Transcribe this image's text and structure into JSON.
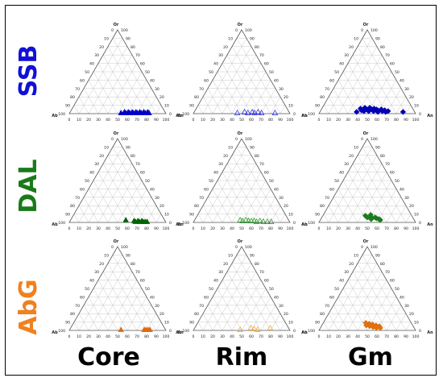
{
  "row_labels": [
    {
      "text": "SSB",
      "color": "#1010d8"
    },
    {
      "text": "DAL",
      "color": "#1a7a1a"
    },
    {
      "text": "AbG",
      "color": "#f08020"
    }
  ],
  "col_labels": [
    "Core",
    "Rim",
    "Gm"
  ],
  "apex_labels": {
    "top": "Or",
    "left": "Ab",
    "right": "An"
  },
  "ticks": [
    "0",
    "10",
    "20",
    "30",
    "40",
    "50",
    "60",
    "70",
    "80",
    "90",
    "100"
  ],
  "chart_data": [
    {
      "type": "scatter",
      "row": "SSB",
      "column": "Core",
      "marker": "triangle",
      "filled": true,
      "color": "#0000c8",
      "points": [
        {
          "An": 53,
          "Or": 1
        },
        {
          "An": 56,
          "Or": 2
        },
        {
          "An": 58,
          "Or": 1
        },
        {
          "An": 60,
          "Or": 2
        },
        {
          "An": 62,
          "Or": 1
        },
        {
          "An": 64,
          "Or": 2
        },
        {
          "An": 66,
          "Or": 1
        },
        {
          "An": 68,
          "Or": 2
        },
        {
          "An": 70,
          "Or": 1
        },
        {
          "An": 72,
          "Or": 2
        },
        {
          "An": 74,
          "Or": 1
        },
        {
          "An": 76,
          "Or": 2
        },
        {
          "An": 78,
          "Or": 1
        },
        {
          "An": 80,
          "Or": 2
        },
        {
          "An": 82,
          "Or": 1
        }
      ]
    },
    {
      "type": "scatter",
      "row": "SSB",
      "column": "Rim",
      "marker": "triangle",
      "filled": false,
      "color": "#2020e0",
      "points": [
        {
          "An": 45,
          "Or": 1
        },
        {
          "An": 52,
          "Or": 2
        },
        {
          "An": 56,
          "Or": 1
        },
        {
          "An": 60,
          "Or": 2
        },
        {
          "An": 63,
          "Or": 1
        },
        {
          "An": 66,
          "Or": 2
        },
        {
          "An": 70,
          "Or": 1
        },
        {
          "An": 84,
          "Or": 1
        }
      ]
    },
    {
      "type": "scatter",
      "row": "SSB",
      "column": "Gm",
      "marker": "diamond",
      "filled": true,
      "color": "#0000b4",
      "points": [
        {
          "An": 38,
          "Or": 2
        },
        {
          "An": 40,
          "Or": 6
        },
        {
          "An": 42,
          "Or": 4
        },
        {
          "An": 44,
          "Or": 7
        },
        {
          "An": 45,
          "Or": 3
        },
        {
          "An": 47,
          "Or": 5
        },
        {
          "An": 49,
          "Or": 7
        },
        {
          "An": 50,
          "Or": 3
        },
        {
          "An": 52,
          "Or": 5
        },
        {
          "An": 54,
          "Or": 6
        },
        {
          "An": 55,
          "Or": 3
        },
        {
          "An": 57,
          "Or": 5
        },
        {
          "An": 59,
          "Or": 4
        },
        {
          "An": 60,
          "Or": 2
        },
        {
          "An": 62,
          "Or": 5
        },
        {
          "An": 64,
          "Or": 3
        },
        {
          "An": 66,
          "Or": 4
        },
        {
          "An": 68,
          "Or": 2
        },
        {
          "An": 70,
          "Or": 3
        },
        {
          "An": 86,
          "Or": 2
        }
      ]
    },
    {
      "type": "scatter",
      "row": "DAL",
      "column": "Core",
      "marker": "triangle",
      "filled": true,
      "color": "#006400",
      "points": [
        {
          "An": 57,
          "Or": 3
        },
        {
          "An": 66,
          "Or": 2
        },
        {
          "An": 68,
          "Or": 1
        },
        {
          "An": 70,
          "Or": 2
        },
        {
          "An": 72,
          "Or": 1
        },
        {
          "An": 74,
          "Or": 2
        },
        {
          "An": 76,
          "Or": 1
        },
        {
          "An": 78,
          "Or": 1
        },
        {
          "An": 80,
          "Or": 1
        }
      ]
    },
    {
      "type": "scatter",
      "row": "DAL",
      "column": "Rim",
      "marker": "triangle",
      "filled": false,
      "color": "#228b22",
      "points": [
        {
          "An": 47,
          "Or": 3
        },
        {
          "An": 50,
          "Or": 2
        },
        {
          "An": 53,
          "Or": 3
        },
        {
          "An": 56,
          "Or": 2
        },
        {
          "An": 59,
          "Or": 2
        },
        {
          "An": 62,
          "Or": 2
        },
        {
          "An": 65,
          "Or": 1
        },
        {
          "An": 68,
          "Or": 2
        },
        {
          "An": 72,
          "Or": 1
        },
        {
          "An": 76,
          "Or": 1
        },
        {
          "An": 80,
          "Or": 1
        }
      ]
    },
    {
      "type": "scatter",
      "row": "DAL",
      "column": "Gm",
      "marker": "diamond",
      "filled": true,
      "color": "#1e7b1e",
      "points": [
        {
          "An": 44,
          "Or": 8
        },
        {
          "An": 47,
          "Or": 6
        },
        {
          "An": 49,
          "Or": 9
        },
        {
          "An": 51,
          "Or": 6
        },
        {
          "An": 52,
          "Or": 4
        },
        {
          "An": 55,
          "Or": 6
        },
        {
          "An": 57,
          "Or": 5
        },
        {
          "An": 60,
          "Or": 4
        },
        {
          "An": 62,
          "Or": 3
        }
      ]
    },
    {
      "type": "scatter",
      "row": "AbG",
      "column": "Core",
      "marker": "triangle",
      "filled": true,
      "color": "#e06a10",
      "points": [
        {
          "An": 53,
          "Or": 1
        },
        {
          "An": 77,
          "Or": 1
        },
        {
          "An": 79,
          "Or": 1
        },
        {
          "An": 81,
          "Or": 1
        },
        {
          "An": 83,
          "Or": 1
        }
      ]
    },
    {
      "type": "scatter",
      "row": "AbG",
      "column": "Rim",
      "marker": "triangle",
      "filled": false,
      "color": "#f0a030",
      "points": [
        {
          "An": 48,
          "Or": 1
        },
        {
          "An": 58,
          "Or": 3
        },
        {
          "An": 62,
          "Or": 2
        },
        {
          "An": 66,
          "Or": 1
        },
        {
          "An": 78,
          "Or": 3
        }
      ]
    },
    {
      "type": "scatter",
      "row": "AbG",
      "column": "Gm",
      "marker": "diamond",
      "filled": true,
      "color": "#e07010",
      "points": [
        {
          "An": 44,
          "Or": 9
        },
        {
          "An": 46,
          "Or": 6
        },
        {
          "An": 48,
          "Or": 8
        },
        {
          "An": 50,
          "Or": 5
        },
        {
          "An": 52,
          "Or": 7
        },
        {
          "An": 54,
          "Or": 4
        },
        {
          "An": 56,
          "Or": 6
        },
        {
          "An": 58,
          "Or": 3
        },
        {
          "An": 60,
          "Or": 5
        },
        {
          "An": 62,
          "Or": 3
        }
      ]
    }
  ]
}
